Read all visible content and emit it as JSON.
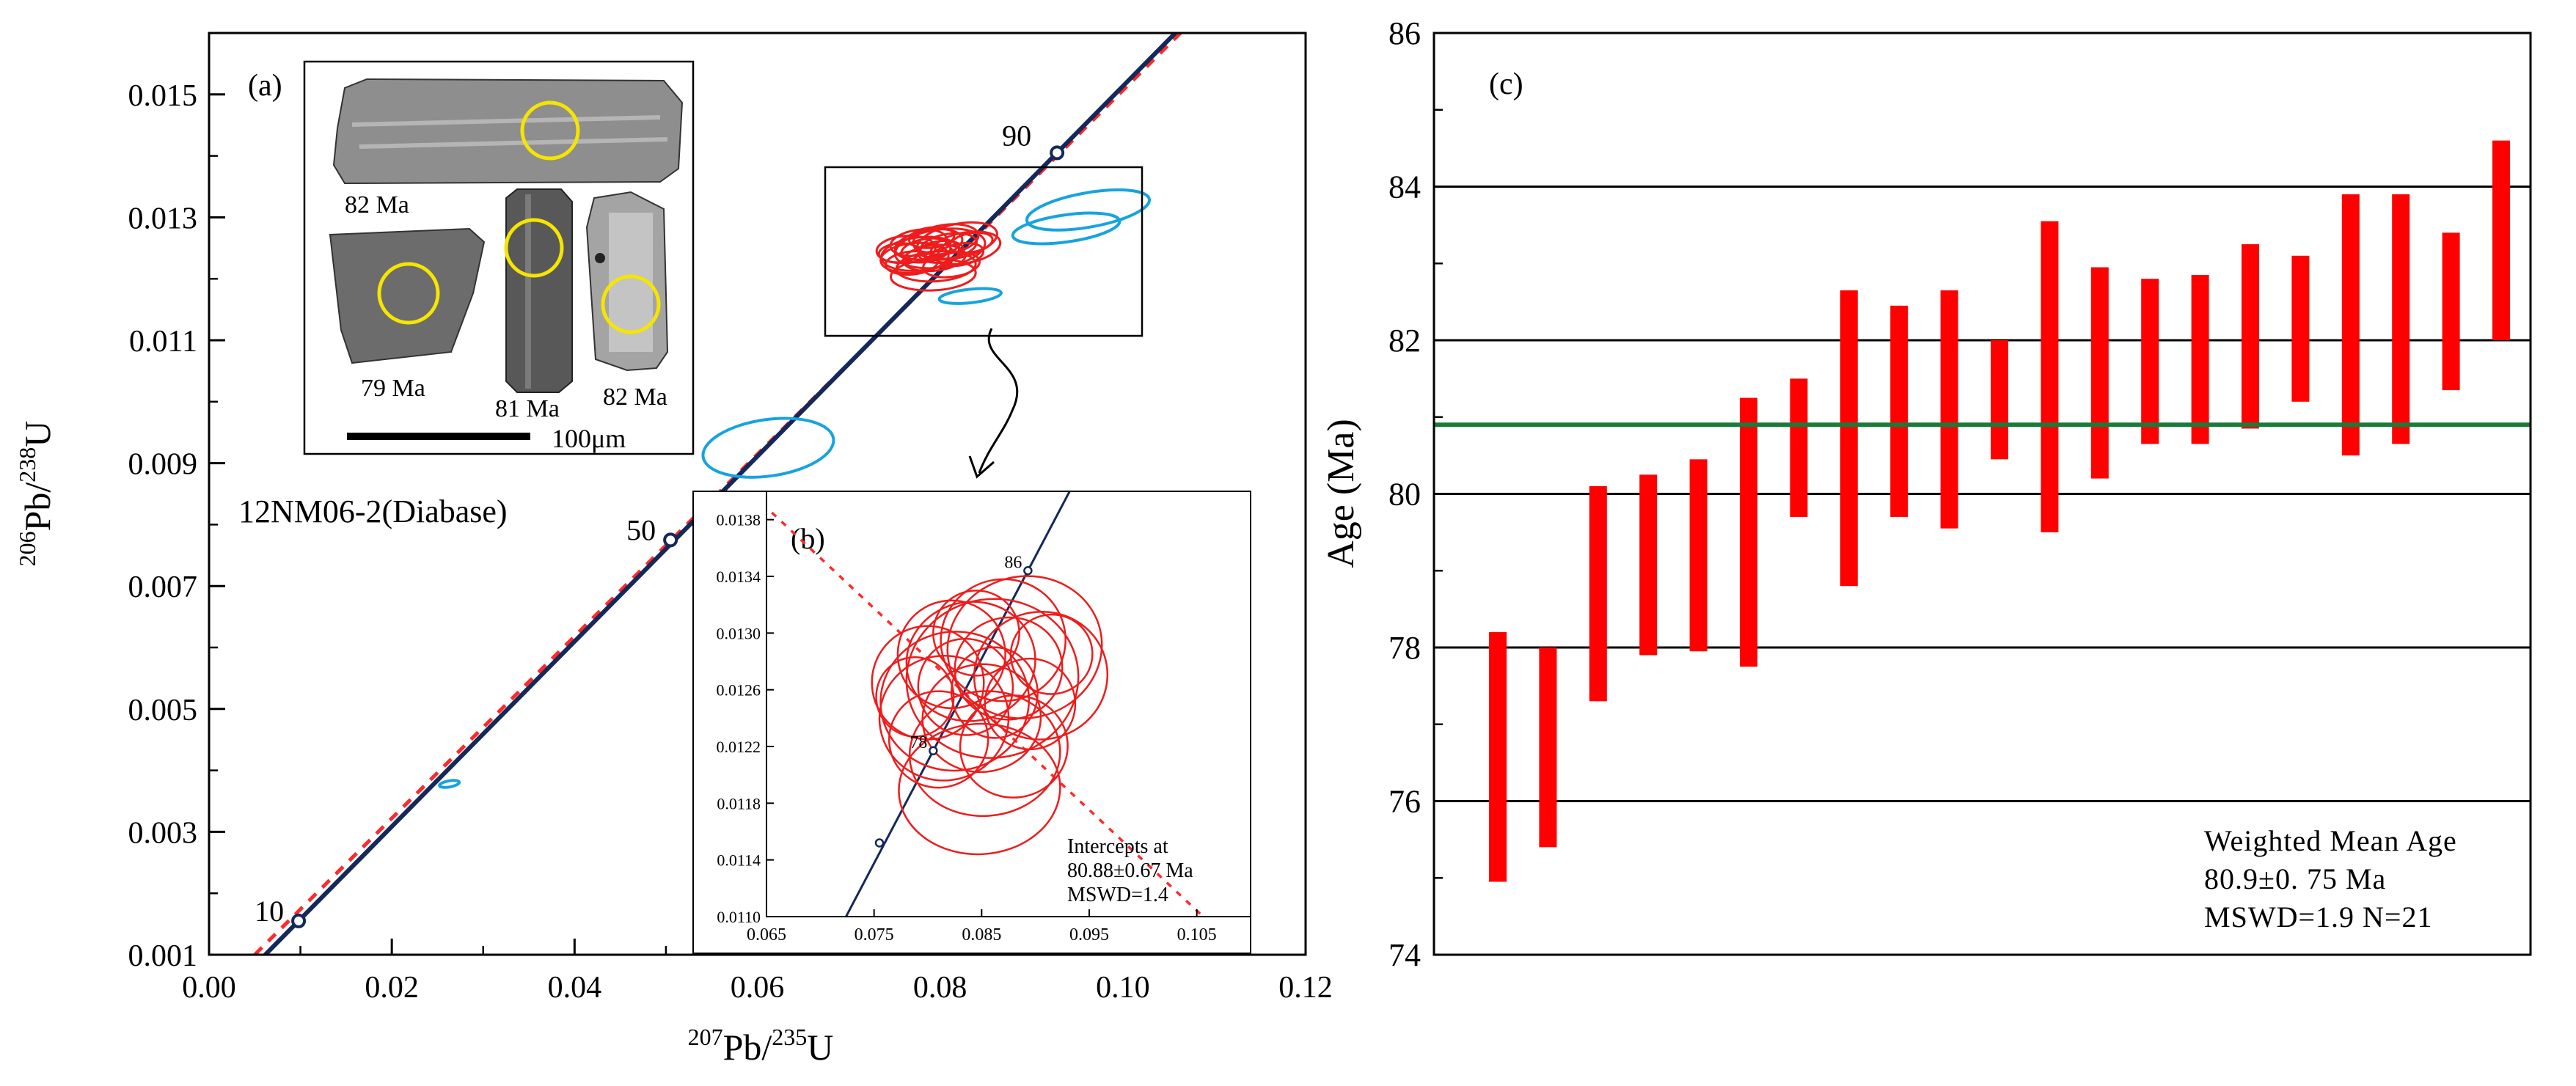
{
  "chart_data": [
    {
      "panel": "(a)",
      "type": "scatter",
      "subtype": "concordia",
      "xlabel_parts": [
        "207",
        "Pb/",
        "235",
        "U"
      ],
      "ylabel_parts": [
        "206",
        "Pb/",
        "238",
        "U"
      ],
      "xlim": [
        0.0,
        0.12
      ],
      "ylim": [
        0.001,
        0.016
      ],
      "x_ticks": [
        "0.00",
        "0.02",
        "0.04",
        "0.06",
        "0.08",
        "0.10",
        "0.12"
      ],
      "y_ticks": [
        "0.001",
        "0.003",
        "0.005",
        "0.007",
        "0.009",
        "0.011",
        "0.013",
        "0.015"
      ],
      "sample_label": "12NM06-2(Diabase)",
      "concordia_color": "#14285a",
      "discordia_color": "#ff2a2a",
      "concordia_age_marks": [
        {
          "age": "10",
          "x": 0.0098,
          "y": 0.00155
        },
        {
          "age": "50",
          "x": 0.0505,
          "y": 0.00775
        },
        {
          "age": "90",
          "x": 0.0928,
          "y": 0.01405
        }
      ],
      "discordia_line": {
        "x": [
          0.005,
          0.108
        ],
        "y": [
          0.001,
          0.01625
        ]
      },
      "blue_ellipses": [
        {
          "cx": 0.0612,
          "cy": 0.00925,
          "rx": 0.0072,
          "ry": 0.00046,
          "angle": -8
        },
        {
          "cx": 0.0263,
          "cy": 0.00378,
          "rx": 0.0011,
          "ry": 5e-05,
          "angle": -10
        },
        {
          "cx": 0.0962,
          "cy": 0.01312,
          "rx": 0.0068,
          "ry": 0.00028,
          "angle": -10
        },
        {
          "cx": 0.0938,
          "cy": 0.01282,
          "rx": 0.0059,
          "ry": 0.00022,
          "angle": -8
        },
        {
          "cx": 0.0833,
          "cy": 0.01172,
          "rx": 0.0034,
          "ry": 0.00011,
          "angle": -6
        }
      ],
      "red_cluster": {
        "cx": 0.0795,
        "cy": 0.01245,
        "spread_x": 0.018,
        "spread_y": 0.0008
      },
      "cl_image_labels": [
        "82 Ma",
        "79 Ma",
        "81 Ma",
        "82 Ma"
      ],
      "cl_scale_label": "100μm",
      "highlight_color": "#f5e500"
    },
    {
      "panel": "(b)",
      "type": "scatter",
      "subtype": "concordia-inset",
      "xlim": [
        0.065,
        0.11
      ],
      "ylim": [
        0.011,
        0.014
      ],
      "x_ticks": [
        "0.065",
        "0.075",
        "0.085",
        "0.095",
        "0.105"
      ],
      "y_ticks": [
        "0.0110",
        "0.0114",
        "0.0118",
        "0.0122",
        "0.0126",
        "0.0130",
        "0.0134",
        "0.0138"
      ],
      "concordia_age_marks": [
        {
          "age": "78",
          "x": 0.0805,
          "y": 0.01217
        },
        {
          "age": "86",
          "x": 0.0893,
          "y": 0.01344
        }
      ],
      "concordia_extra_dots": [
        {
          "x": 0.0755,
          "y": 0.01152
        },
        {
          "x": 0.0938,
          "y": 0.01405
        }
      ],
      "ellipses": [
        {
          "cx": 0.0825,
          "cy": 0.01252,
          "rx": 0.0069,
          "ry": 0.00049,
          "angle": -6
        },
        {
          "cx": 0.086,
          "cy": 0.01268,
          "rx": 0.008,
          "ry": 0.00056,
          "angle": -8
        },
        {
          "cx": 0.084,
          "cy": 0.0128,
          "rx": 0.006,
          "ry": 0.00042,
          "angle": -10
        },
        {
          "cx": 0.089,
          "cy": 0.0129,
          "rx": 0.0072,
          "ry": 0.0005,
          "angle": -12
        },
        {
          "cx": 0.08,
          "cy": 0.01265,
          "rx": 0.0052,
          "ry": 0.0004,
          "angle": -4
        },
        {
          "cx": 0.085,
          "cy": 0.0124,
          "rx": 0.0055,
          "ry": 0.00038,
          "angle": -6
        },
        {
          "cx": 0.0905,
          "cy": 0.0127,
          "rx": 0.0062,
          "ry": 0.00045,
          "angle": -10
        },
        {
          "cx": 0.087,
          "cy": 0.01295,
          "rx": 0.0058,
          "ry": 0.00043,
          "angle": -8
        },
        {
          "cx": 0.0815,
          "cy": 0.0124,
          "rx": 0.006,
          "ry": 0.00044,
          "angle": -5
        },
        {
          "cx": 0.088,
          "cy": 0.0122,
          "rx": 0.005,
          "ry": 0.00036,
          "angle": -7
        },
        {
          "cx": 0.0835,
          "cy": 0.01262,
          "rx": 0.0044,
          "ry": 0.00034,
          "angle": -9
        },
        {
          "cx": 0.0862,
          "cy": 0.01258,
          "rx": 0.004,
          "ry": 0.00032,
          "angle": -6
        },
        {
          "cx": 0.0853,
          "cy": 0.01215,
          "rx": 0.007,
          "ry": 0.00044,
          "angle": -4
        },
        {
          "cx": 0.0848,
          "cy": 0.0119,
          "rx": 0.0075,
          "ry": 0.00046,
          "angle": -3
        },
        {
          "cx": 0.0822,
          "cy": 0.01285,
          "rx": 0.005,
          "ry": 0.00038,
          "angle": -8
        },
        {
          "cx": 0.0895,
          "cy": 0.0125,
          "rx": 0.0042,
          "ry": 0.00032,
          "angle": -10
        },
        {
          "cx": 0.081,
          "cy": 0.01225,
          "rx": 0.0046,
          "ry": 0.00034,
          "angle": -5
        },
        {
          "cx": 0.0875,
          "cy": 0.01275,
          "rx": 0.005,
          "ry": 0.00036,
          "angle": -9
        },
        {
          "cx": 0.0845,
          "cy": 0.013,
          "rx": 0.004,
          "ry": 0.0003,
          "angle": -6
        },
        {
          "cx": 0.0915,
          "cy": 0.01285,
          "rx": 0.0038,
          "ry": 0.00028,
          "angle": -10
        },
        {
          "cx": 0.0788,
          "cy": 0.01255,
          "rx": 0.0036,
          "ry": 0.00028,
          "angle": -4
        }
      ],
      "annotation": [
        "Intercepts at",
        "80.88±0.67 Ma",
        "MSWD=1.4"
      ]
    },
    {
      "panel": "(c)",
      "type": "bar",
      "subtype": "weighted-mean-age",
      "ylabel": "Age (Ma)",
      "ylim": [
        74,
        86
      ],
      "y_ticks": [
        "74",
        "76",
        "78",
        "80",
        "82",
        "84",
        "86"
      ],
      "bar_color": "#ff0000",
      "mean_line_color": "#1a7a3a",
      "series": [
        {
          "low": 74.95,
          "high": 78.2
        },
        {
          "low": 75.4,
          "high": 78.0
        },
        {
          "low": 77.3,
          "high": 80.1
        },
        {
          "low": 77.9,
          "high": 80.25
        },
        {
          "low": 77.95,
          "high": 80.45
        },
        {
          "low": 77.75,
          "high": 81.25
        },
        {
          "low": 79.7,
          "high": 81.5
        },
        {
          "low": 78.8,
          "high": 82.65
        },
        {
          "low": 79.7,
          "high": 82.45
        },
        {
          "low": 79.55,
          "high": 82.65
        },
        {
          "low": 80.45,
          "high": 82.0
        },
        {
          "low": 79.5,
          "high": 83.55
        },
        {
          "low": 80.2,
          "high": 82.95
        },
        {
          "low": 80.65,
          "high": 82.8
        },
        {
          "low": 80.65,
          "high": 82.85
        },
        {
          "low": 80.85,
          "high": 83.25
        },
        {
          "low": 81.2,
          "high": 83.1
        },
        {
          "low": 80.5,
          "high": 83.9
        },
        {
          "low": 80.65,
          "high": 83.9
        },
        {
          "low": 81.35,
          "high": 83.4
        },
        {
          "low": 82.0,
          "high": 84.6
        }
      ],
      "mean": 80.9,
      "annotation": [
        "Weighted Mean Age",
        "80.9±0. 75 Ma",
        "MSWD=1.9 N=21"
      ]
    }
  ]
}
